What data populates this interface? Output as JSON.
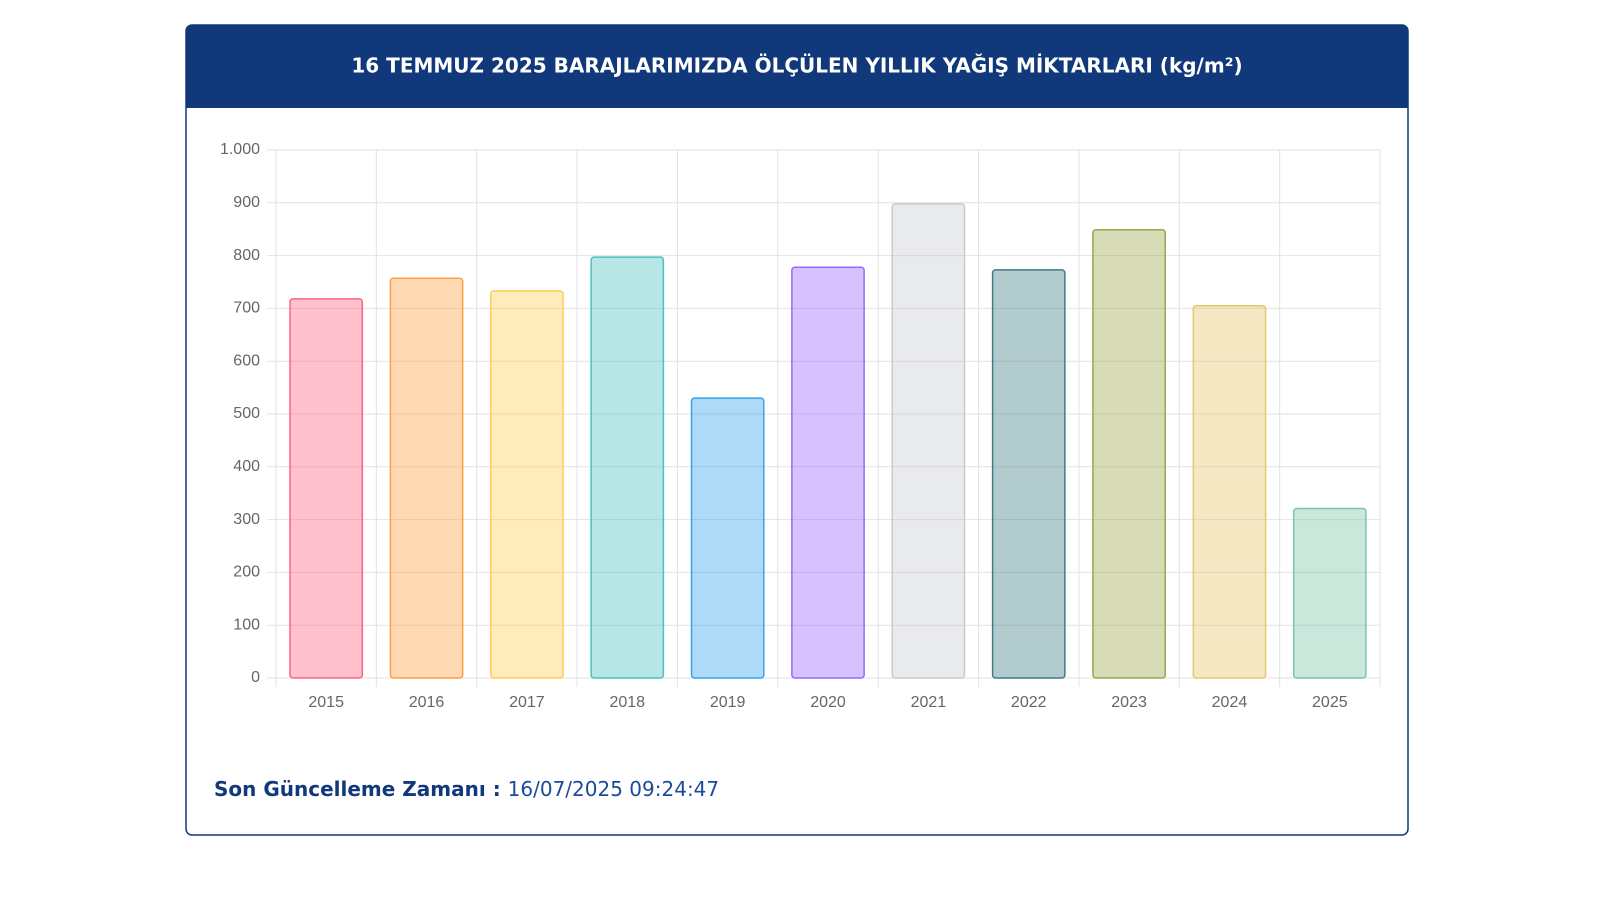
{
  "chart_data": {
    "type": "bar",
    "title": "16 TEMMUZ 2025 BARAJLARIMIZDA ÖLÇÜLEN YILLIK YAĞIŞ MİKTARLARI (kg/m²)",
    "categories": [
      "2015",
      "2016",
      "2017",
      "2018",
      "2019",
      "2020",
      "2021",
      "2022",
      "2023",
      "2024",
      "2025"
    ],
    "values": [
      718,
      757,
      733,
      797,
      530,
      778,
      898,
      773,
      849,
      705,
      321
    ],
    "colors": [
      "#ff6384",
      "#ff9f40",
      "#ffcd56",
      "#4bc0c0",
      "#36a2eb",
      "#9966ff",
      "#c9cbcf",
      "#3e7c87",
      "#9aa54a",
      "#e8c66a",
      "#7cc4a8"
    ],
    "ylim": [
      0,
      1000
    ],
    "yticks": [
      0,
      100,
      200,
      300,
      400,
      500,
      600,
      700,
      800,
      900,
      {
        "value": 1000,
        "label": "1.000"
      }
    ],
    "grid": true
  },
  "footer_label": "Son Güncelleme Zamanı :",
  "footer_value": "16/07/2025 09:24:47"
}
